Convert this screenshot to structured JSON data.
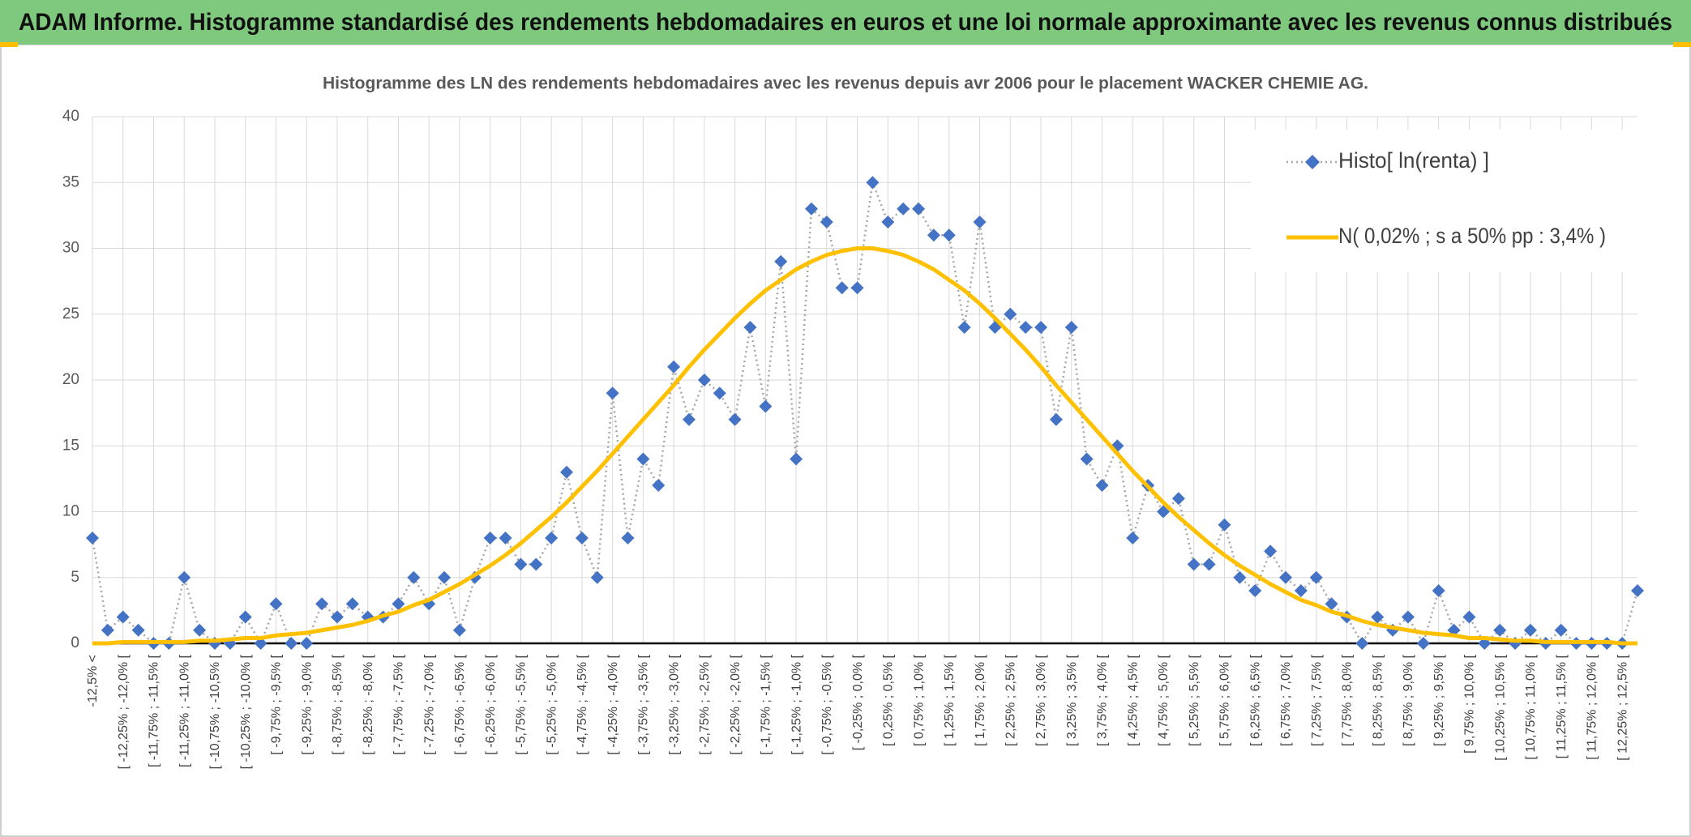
{
  "chart_data": {
    "type": "line",
    "title": "ADAM Informe. Histogramme standardisé des rendements hebdomadaires en euros et une loi normale approximante avec les revenus connus distribués",
    "subtitle": "Histogramme des LN des rendements hebdomadaires avec les revenus depuis avr 2006 pour le placement WACKER CHEMIE AG.",
    "categories": [
      "-12,5% <",
      null,
      "[ -12,25% ; -12,0% [",
      null,
      "[ -11,75% ; -11,5% [",
      null,
      "[ -11,25% ; -11,0% [",
      null,
      "[ -10,75% ; -10,5% [",
      null,
      "[ -10,25% ; -10,0% [",
      null,
      "[ -9,75% ; -9,5% [",
      null,
      "[ -9,25% ; -9,0% [",
      null,
      "[ -8,75% ; -8,5% [",
      null,
      "[ -8,25% ; -8,0% [",
      null,
      "[ -7,75% ; -7,5% [",
      null,
      "[ -7,25% ; -7,0% [",
      null,
      "[ -6,75% ; -6,5% [",
      null,
      "[ -6,25% ; -6,0% [",
      null,
      "[ -5,75% ; -5,5% [",
      null,
      "[ -5,25% ; -5,0% [",
      null,
      "[ -4,75% ; -4,5% [",
      null,
      "[ -4,25% ; -4,0% [",
      null,
      "[ -3,75% ; -3,5% [",
      null,
      "[ -3,25% ; -3,0% [",
      null,
      "[ -2,75% ; -2,5% [",
      null,
      "[ -2,25% ; -2,0% [",
      null,
      "[ -1,75% ; -1,5% [",
      null,
      "[ -1,25% ; -1,0% [",
      null,
      "[ -0,75% ; -0,5% [",
      null,
      "[ -0,25% ; 0,0% [",
      null,
      "[ 0,25% ; 0,5% [",
      null,
      "[ 0,75% ; 1,0% [",
      null,
      "[ 1,25% ; 1,5% [",
      null,
      "[ 1,75% ; 2,0% [",
      null,
      "[ 2,25% ; 2,5% [",
      null,
      "[ 2,75% ; 3,0% [",
      null,
      "[ 3,25% ; 3,5% [",
      null,
      "[ 3,75% ; 4,0% [",
      null,
      "[ 4,25% ; 4,5% [",
      null,
      "[ 4,75% ; 5,0% [",
      null,
      "[ 5,25% ; 5,5% [",
      null,
      "[ 5,75% ; 6,0% [",
      null,
      "[ 6,25% ; 6,5% [",
      null,
      "[ 6,75% ; 7,0% [",
      null,
      "[ 7,25% ; 7,5% [",
      null,
      "[ 7,75% ; 8,0% [",
      null,
      "[ 8,25% ; 8,5% [",
      null,
      "[ 8,75% ; 9,0% [",
      null,
      "[ 9,25% ; 9,5% [",
      null,
      "[ 9,75% ; 10,0% [",
      null,
      "[ 10,25% ; 10,5% [",
      null,
      "[ 10,75% ; 11,0% [",
      null,
      "[ 11,25% ; 11,5% [",
      null,
      "[ 11,75% ; 12,0% [",
      null,
      "[ 12,25% ; 12,5% [",
      null
    ],
    "series": [
      {
        "name": "Histo[ ln(renta) ]",
        "color": "#4472c4",
        "line_color": "#a6a6a6",
        "values": [
          8,
          1,
          2,
          1,
          0,
          0,
          5,
          1,
          0,
          0,
          2,
          0,
          3,
          0,
          0,
          3,
          2,
          3,
          2,
          2,
          3,
          5,
          3,
          5,
          1,
          5,
          8,
          8,
          6,
          6,
          8,
          13,
          8,
          5,
          19,
          8,
          14,
          12,
          21,
          17,
          20,
          19,
          17,
          24,
          18,
          29,
          14,
          33,
          32,
          27,
          27,
          35,
          32,
          33,
          33,
          31,
          31,
          24,
          32,
          24,
          25,
          24,
          24,
          17,
          24,
          14,
          12,
          15,
          8,
          12,
          10,
          11,
          6,
          6,
          9,
          5,
          4,
          7,
          5,
          4,
          5,
          3,
          2,
          0,
          2,
          1,
          2,
          0,
          4,
          1,
          2,
          0,
          1,
          0,
          1,
          0,
          1,
          0,
          0,
          0,
          0,
          4
        ]
      },
      {
        "name": "N( 0,02% ; s a 50% pp : 3,4% )",
        "color": "#ffc000",
        "values": [
          0.0,
          0.0,
          0.1,
          0.1,
          0.1,
          0.1,
          0.1,
          0.2,
          0.2,
          0.3,
          0.4,
          0.4,
          0.6,
          0.7,
          0.8,
          1.0,
          1.2,
          1.4,
          1.7,
          2.1,
          2.4,
          2.9,
          3.3,
          3.9,
          4.5,
          5.2,
          5.9,
          6.7,
          7.6,
          8.6,
          9.6,
          10.7,
          11.9,
          13.1,
          14.4,
          15.7,
          17.0,
          18.3,
          19.6,
          21.0,
          22.3,
          23.5,
          24.7,
          25.8,
          26.8,
          27.6,
          28.4,
          29.0,
          29.5,
          29.8,
          30.0,
          30.0,
          29.8,
          29.5,
          29.0,
          28.4,
          27.6,
          26.8,
          25.8,
          24.7,
          23.5,
          22.3,
          21.0,
          19.6,
          18.3,
          17.0,
          15.7,
          14.4,
          13.1,
          11.9,
          10.7,
          9.6,
          8.6,
          7.6,
          6.7,
          5.9,
          5.2,
          4.5,
          3.9,
          3.3,
          2.9,
          2.4,
          2.1,
          1.7,
          1.4,
          1.2,
          1.0,
          0.8,
          0.7,
          0.6,
          0.4,
          0.4,
          0.3,
          0.2,
          0.2,
          0.1,
          0.1,
          0.1,
          0.1,
          0.1,
          0.0,
          0.0
        ]
      }
    ],
    "ylim": [
      0,
      40
    ],
    "yticks": [
      0,
      5,
      10,
      15,
      20,
      25,
      30,
      35,
      40
    ],
    "grid": true,
    "legend": "top-right"
  }
}
